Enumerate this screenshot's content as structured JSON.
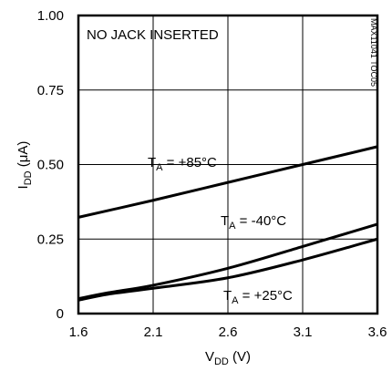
{
  "chart_data": {
    "type": "line",
    "title": "",
    "xlabel": {
      "main": "V",
      "sub": "DD",
      "unit": " (V)"
    },
    "ylabel": {
      "main": "I",
      "sub": "DD",
      "unit": " (μA)"
    },
    "xlim": [
      1.6,
      3.6
    ],
    "ylim": [
      0,
      1.0
    ],
    "x_ticks": [
      "1.6",
      "2.1",
      "2.6",
      "3.1",
      "3.6"
    ],
    "x_tick_values": [
      1.6,
      2.1,
      2.6,
      3.1,
      3.6
    ],
    "y_ticks": [
      "0",
      "0.25",
      "0.50",
      "0.75",
      "1.00"
    ],
    "y_tick_values": [
      0,
      0.25,
      0.5,
      0.75,
      1.0
    ],
    "grid": true,
    "annotation": "NO JACK INSERTED",
    "figure_code": "MAX11041 TOC05",
    "series": [
      {
        "label_main": "T",
        "label_sub": "A",
        "label_rest": " = +85°C",
        "x": [
          1.6,
          2.1,
          2.6,
          3.1,
          3.6
        ],
        "y": [
          0.323,
          0.38,
          0.44,
          0.5,
          0.56
        ]
      },
      {
        "label_main": "T",
        "label_sub": "A",
        "label_rest": " = -40°C",
        "x": [
          1.6,
          1.8,
          2.1,
          2.6,
          3.1,
          3.6
        ],
        "y": [
          0.05,
          0.07,
          0.095,
          0.152,
          0.225,
          0.3
        ]
      },
      {
        "label_main": "T",
        "label_sub": "A",
        "label_rest": " = +25°C",
        "x": [
          1.6,
          1.8,
          2.1,
          2.6,
          3.1,
          3.6
        ],
        "y": [
          0.045,
          0.065,
          0.085,
          0.12,
          0.18,
          0.25
        ]
      }
    ]
  }
}
